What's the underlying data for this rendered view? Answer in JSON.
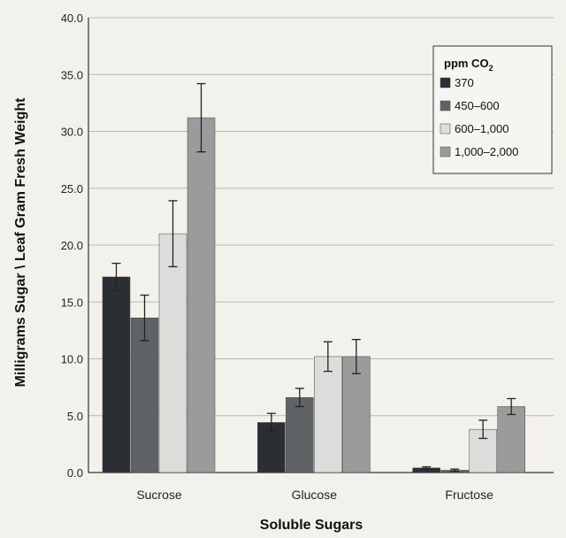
{
  "chart_data": {
    "type": "bar",
    "title": "",
    "xlabel": "Soluble Sugars",
    "ylabel": "Milligrams  Sugar \\ Leaf Gram Fresh Weight",
    "ylim": [
      0,
      40
    ],
    "yticks": [
      "0.0",
      "5.0",
      "10.0",
      "15.0",
      "20.0",
      "25.0",
      "30.0",
      "35.0",
      "40.0"
    ],
    "categories": [
      "Sucrose",
      "Glucose",
      "Fructose"
    ],
    "legend": {
      "title": "ppm CO",
      "title_subscript": "2",
      "placement": "top-right"
    },
    "grid": true,
    "series": [
      {
        "name": "370",
        "color": "#2b2f33",
        "values": [
          17.2,
          4.4,
          0.4
        ],
        "error": [
          1.2,
          0.8,
          0.1
        ]
      },
      {
        "name": "450–600",
        "color": "#5f6366",
        "values": [
          13.6,
          6.6,
          0.2
        ],
        "error": [
          2.0,
          0.8,
          0.1
        ]
      },
      {
        "name": "600–1,000",
        "color": "#dcdcda",
        "values": [
          21.0,
          10.2,
          3.8
        ],
        "error": [
          2.9,
          1.3,
          0.8
        ]
      },
      {
        "name": "1,000–2,000",
        "color": "#9a9c9c",
        "values": [
          31.2,
          10.2,
          5.8
        ],
        "error": [
          3.0,
          1.5,
          0.7
        ]
      }
    ]
  }
}
